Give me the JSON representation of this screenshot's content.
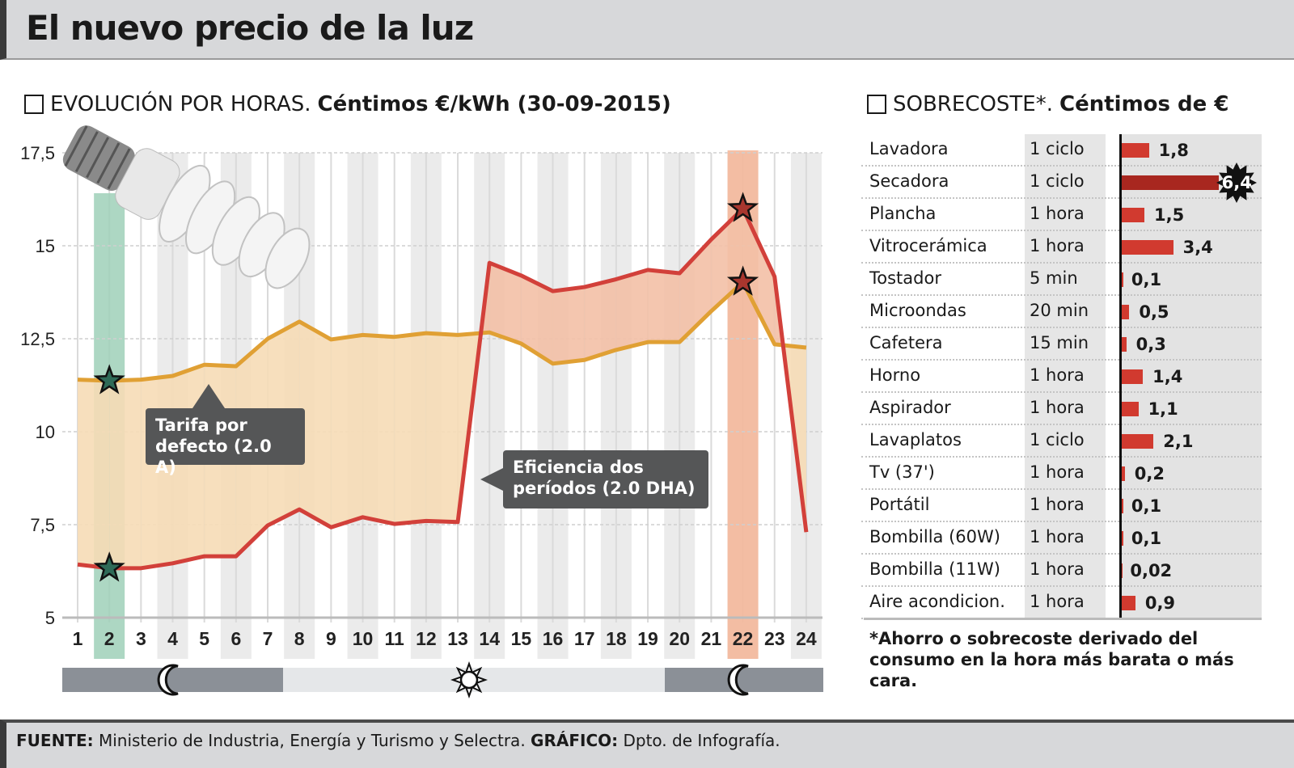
{
  "header": {
    "title": "El nuevo precio de la luz"
  },
  "left_section": {
    "title_plain": "EVOLUCIÓN POR HORAS.",
    "title_bold": "Céntimos €/kWh (30-09-2015)"
  },
  "right_section": {
    "title_plain": "SOBRECOSTE*.",
    "title_bold": "Céntimos de €"
  },
  "callouts": {
    "default_tariff": "Tarifa por defecto (2.0 A)",
    "two_periods": "Eficiencia dos períodos (2.0 DHA)"
  },
  "period_bar": {
    "icons": [
      "moon-icon",
      "sun-icon",
      "moon-icon"
    ],
    "night_color": "#8b9097",
    "day_color": "#e5e7e9"
  },
  "footnote": "*Ahorro o sobrecoste derivado del consumo en la hora más barata o más cara.",
  "footer": {
    "source_label": "FUENTE:",
    "source_text": "Ministerio de Industria, Energía y Turismo y Selectra.",
    "graphic_label": "GRÁFICO:",
    "graphic_text": "Dpto. de Infografía."
  },
  "chart_data": [
    {
      "type": "line",
      "title": "EVOLUCIÓN POR HORAS. Céntimos €/kWh (30-09-2015)",
      "xlabel": "",
      "ylabel": "",
      "x": [
        1,
        2,
        3,
        4,
        5,
        6,
        7,
        8,
        9,
        10,
        11,
        12,
        13,
        14,
        15,
        16,
        17,
        18,
        19,
        20,
        21,
        22,
        23,
        24
      ],
      "x_tick_labels": [
        "1",
        "2",
        "3",
        "4",
        "5",
        "6",
        "7",
        "8",
        "9",
        "10",
        "11",
        "12",
        "13",
        "14",
        "15",
        "16",
        "17",
        "18",
        "19",
        "20",
        "21",
        "22",
        "23",
        "24"
      ],
      "y_ticks": [
        5,
        7.5,
        10,
        12.5,
        15,
        17.5
      ],
      "y_tick_labels": [
        "5",
        "7,5",
        "10",
        "12,5",
        "15",
        "17,5"
      ],
      "ylim": [
        5,
        17.5
      ],
      "grid": true,
      "highlight_hours": {
        "cheapest": 2,
        "most_expensive": 22
      },
      "series": [
        {
          "name": "Tarifa por defecto (2.0 A)",
          "color": "#e0a034",
          "values": [
            11.4,
            11.37,
            11.4,
            11.5,
            11.8,
            11.76,
            12.5,
            12.96,
            12.48,
            12.6,
            12.55,
            12.65,
            12.6,
            12.67,
            12.37,
            11.83,
            11.93,
            12.2,
            12.41,
            12.41,
            13.24,
            14.02,
            12.35,
            12.26
          ]
        },
        {
          "name": "Eficiencia dos períodos (2.0 DHA)",
          "color": "#d2403a",
          "values": [
            6.43,
            6.33,
            6.33,
            6.46,
            6.65,
            6.65,
            7.48,
            7.91,
            7.43,
            7.7,
            7.52,
            7.6,
            7.57,
            14.54,
            14.2,
            13.78,
            13.89,
            14.1,
            14.35,
            14.26,
            15.17,
            16.0,
            14.17,
            7.3
          ]
        }
      ]
    },
    {
      "type": "bar",
      "title": "SOBRECOSTE*. Céntimos de €",
      "categories": [
        "Lavadora",
        "Secadora",
        "Plancha",
        "Vitrocerámica",
        "Tostador",
        "Microondas",
        "Cafetera",
        "Horno",
        "Aspirador",
        "Lavaplatos",
        "Tv (37')",
        "Portátil",
        "Bombilla (60W)",
        "Bombilla (11W)",
        "Aire acondicion."
      ],
      "durations": [
        "1 ciclo",
        "1 ciclo",
        "1 hora",
        "1 hora",
        "5 min",
        "20 min",
        "15 min",
        "1 hora",
        "1 hora",
        "1 ciclo",
        "1 hora",
        "1 hora",
        "1 hora",
        "1 hora",
        "1 hora"
      ],
      "values": [
        1.8,
        6.4,
        1.5,
        3.4,
        0.1,
        0.5,
        0.3,
        1.4,
        1.1,
        2.1,
        0.2,
        0.1,
        0.1,
        0.02,
        0.9
      ],
      "value_labels": [
        "1,8",
        "6,4",
        "1,5",
        "3,4",
        "0,1",
        "0,5",
        "0,3",
        "1,4",
        "1,1",
        "2,1",
        "0,2",
        "0,1",
        "0,1",
        "0,02",
        "0,9"
      ],
      "color": "#d13a2f",
      "highlight_color": "#a8271f"
    }
  ]
}
